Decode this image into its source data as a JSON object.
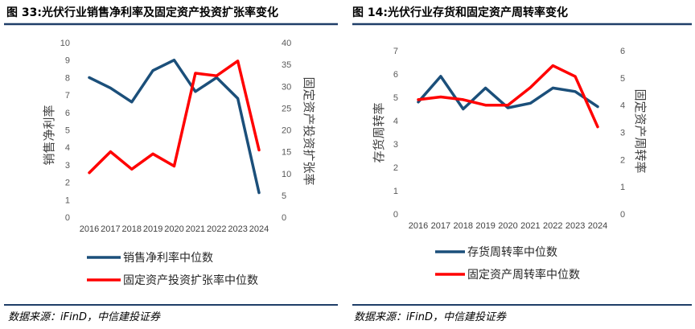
{
  "chart_data": [
    {
      "type": "line",
      "title": "图 33:光伏行业销售净利率及固定资产投资扩张率变化",
      "categories": [
        "2016",
        "2017",
        "2018",
        "2019",
        "2020",
        "2021",
        "2022",
        "2023",
        "2024"
      ],
      "ylabel": "销售净利率",
      "y2label": "固定资产投资扩张率",
      "ylim": [
        0,
        10
      ],
      "y2lim": [
        0,
        40
      ],
      "yticks": [
        0,
        1,
        2,
        3,
        4,
        5,
        6,
        7,
        8,
        9,
        10
      ],
      "y2ticks": [
        0,
        5,
        10,
        15,
        20,
        25,
        30,
        35,
        40
      ],
      "grid": false,
      "legend": "bottom-left",
      "series": [
        {
          "name": "销售净利率中位数",
          "axis": "left",
          "color": "#1B4F7A",
          "values": [
            8.0,
            7.4,
            6.6,
            8.4,
            9.0,
            7.2,
            8.0,
            6.8,
            1.4
          ]
        },
        {
          "name": "固定资产投资扩张率中位数",
          "axis": "right",
          "color": "#FF0000",
          "values": [
            10.2,
            15.0,
            11.0,
            14.5,
            11.7,
            33.0,
            32.4,
            35.8,
            15.4
          ]
        }
      ]
    },
    {
      "type": "line",
      "title": "图 14:光伏行业存货和固定资产周转率变化",
      "categories": [
        "2016",
        "2017",
        "2018",
        "2019",
        "2020",
        "2021",
        "2022",
        "2023",
        "2024"
      ],
      "ylabel": "存货周转率",
      "y2label": "固定资产周转率",
      "ylim": [
        0,
        7
      ],
      "y2lim": [
        0,
        6
      ],
      "yticks": [
        0,
        1,
        2,
        3,
        4,
        5,
        6,
        7
      ],
      "y2ticks": [
        0,
        1,
        2,
        3,
        4,
        5,
        6
      ],
      "grid": false,
      "legend": "bottom-left",
      "series": [
        {
          "name": "存货周转率中位数",
          "axis": "left",
          "color": "#1B4F7A",
          "values": [
            4.8,
            5.9,
            4.5,
            5.4,
            4.55,
            4.75,
            5.4,
            5.25,
            4.6
          ]
        },
        {
          "name": "固定资产周转率中位数",
          "axis": "right",
          "color": "#FF0000",
          "values": [
            4.2,
            4.3,
            4.2,
            4.0,
            4.0,
            4.65,
            5.45,
            5.05,
            3.2
          ]
        }
      ]
    }
  ],
  "sources": [
    "数据来源：iFinD，中信建投证券",
    "数据来源：iFinD，中信建投证券"
  ],
  "colors": {
    "rule": "#1F3E68"
  }
}
